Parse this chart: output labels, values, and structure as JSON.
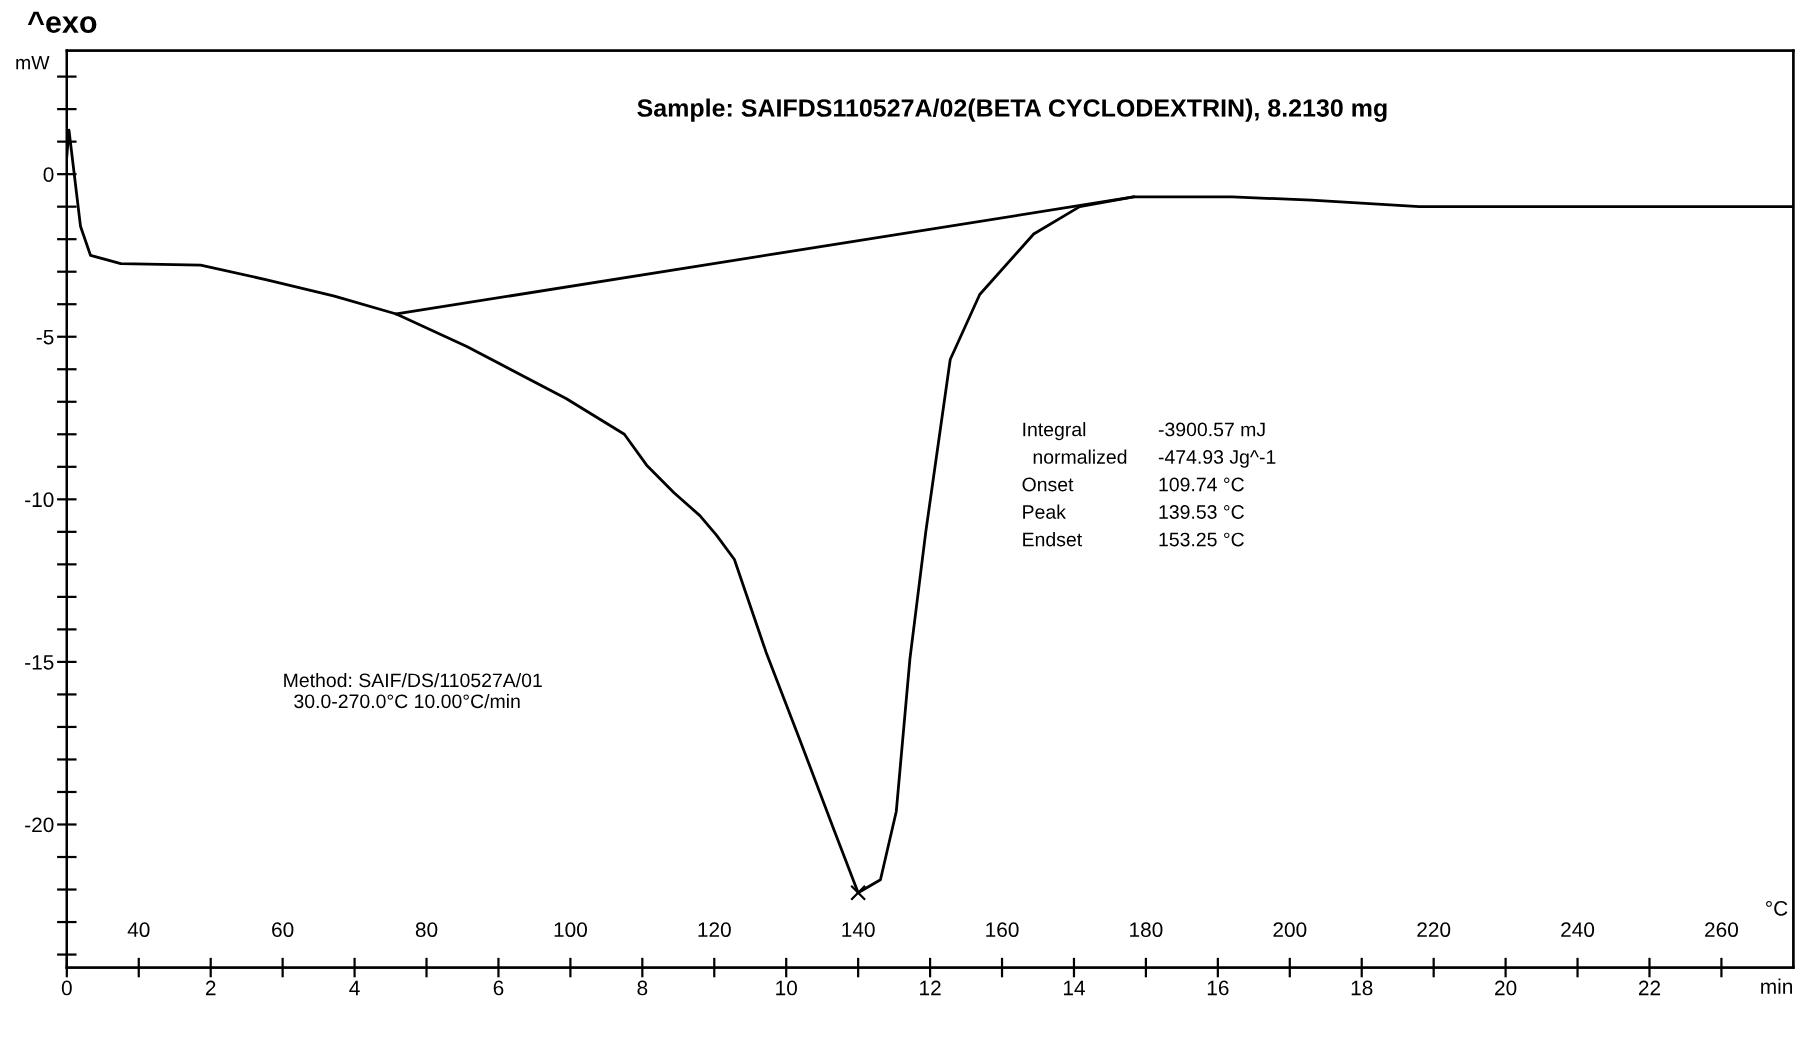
{
  "chart_data": {
    "type": "line",
    "title": "Sample: SAIFDS110527A/02(BETA CYCLODEXTRIN), 8.2130 mg",
    "xlabel": "min",
    "ylabel": "mW",
    "x2label": "°C",
    "xlim": [
      0,
      24
    ],
    "xticks": [
      0,
      2,
      4,
      6,
      8,
      10,
      12,
      14,
      16,
      18,
      20,
      22
    ],
    "x2lim": [
      30,
      270
    ],
    "x2ticks": [
      40,
      60,
      80,
      100,
      120,
      140,
      160,
      180,
      200,
      220,
      240,
      260
    ],
    "ylim": [
      -24.4,
      3.8
    ],
    "yticks": [
      {
        "value": 3,
        "label": null
      },
      {
        "value": 2,
        "label": null
      },
      {
        "value": 1,
        "label": null
      },
      0,
      {
        "value": -1,
        "label": null
      },
      {
        "value": -2,
        "label": null
      },
      {
        "value": -3,
        "label": null
      },
      {
        "value": -4,
        "label": null
      },
      -5,
      {
        "value": -6,
        "label": null
      },
      {
        "value": -7,
        "label": null
      },
      {
        "value": -8,
        "label": null
      },
      {
        "value": -9,
        "label": null
      },
      -10,
      {
        "value": -11,
        "label": null
      },
      {
        "value": -12,
        "label": null
      },
      {
        "value": -13,
        "label": null
      },
      {
        "value": -14,
        "label": null
      },
      -15,
      {
        "value": -16,
        "label": null
      },
      {
        "value": -17,
        "label": null
      },
      {
        "value": -18,
        "label": null
      },
      {
        "value": -19,
        "label": null
      },
      -20,
      {
        "value": -21,
        "label": null
      },
      {
        "value": -22,
        "label": null
      },
      {
        "value": -23,
        "label": null
      },
      {
        "value": -24,
        "label": null
      }
    ],
    "grid": false,
    "legend": false,
    "series": [
      {
        "color": "#000000",
        "x": [
          0,
          0.03,
          0.19,
          0.33,
          0.75,
          1.86,
          2.78,
          3.72,
          4.58,
          5.56,
          6.94,
          7.75,
          8.06,
          8.44,
          8.8,
          9.03,
          9.28,
          9.72,
          10.19,
          10.67,
          11.0,
          11.31,
          11.53,
          11.72,
          11.94,
          12.28,
          12.69,
          13.44,
          14.08,
          14.83,
          16.2,
          17.3,
          18.8,
          20.2,
          23.2,
          24.0
        ],
        "values": [
          0.55,
          1.35,
          -1.6,
          -2.5,
          -2.75,
          -2.8,
          -3.25,
          -3.75,
          -4.3,
          -5.3,
          -6.9,
          -8.0,
          -8.95,
          -9.8,
          -10.5,
          -11.1,
          -11.85,
          -14.7,
          -17.4,
          -20.2,
          -22.1,
          -21.7,
          -19.6,
          -14.9,
          -11.0,
          -5.7,
          -3.7,
          -1.84,
          -1.0,
          -0.7,
          -0.7,
          -0.8,
          -1.0,
          -1.0,
          -1.0,
          -1.0
        ]
      },
      {
        "type": "line",
        "color": "#000000",
        "x": [
          4.58,
          14.83
        ],
        "values": [
          -4.3,
          -0.7
        ]
      },
      {
        "type": "scatter",
        "color": "#000000",
        "marker": "cross",
        "x": [
          11.0
        ],
        "values": [
          -22.1
        ]
      }
    ],
    "annotations": [
      "^exo",
      "Integral",
      "-3900.57 mJ",
      "  normalized",
      "-474.93 Jg^-1",
      "Onset",
      "109.74 °C",
      "Peak",
      "139.53 °C",
      "Endset",
      "153.25 °C",
      "Method: SAIF/DS/110527A/01\n  30.0-270.0°C 10.00°C/min"
    ]
  }
}
